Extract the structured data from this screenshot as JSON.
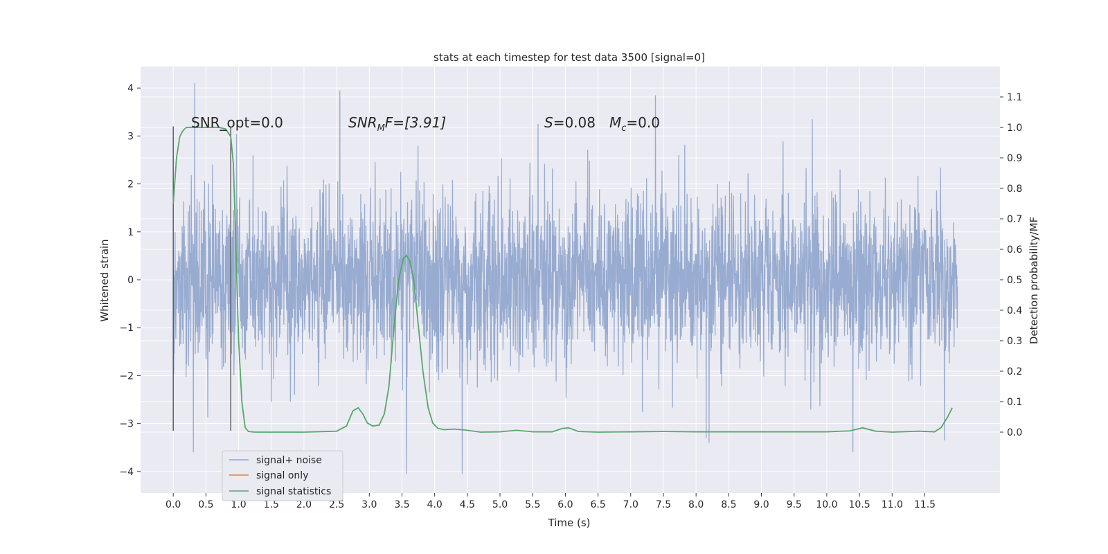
{
  "chart_data": {
    "type": "line",
    "title": "stats at each timestep for test data 3500 [signal=0]",
    "xlabel": "Time (s)",
    "ylabel": "Whitened strain",
    "ylabel_right": "Detection probability/MF",
    "xlim": [
      -0.5,
      12.65
    ],
    "ylim": [
      -4.45,
      4.45
    ],
    "ylim_right": [
      -0.2,
      1.2
    ],
    "x_ticks": [
      "0.0",
      "0.5",
      "1.0",
      "1.5",
      "2.0",
      "2.5",
      "3.0",
      "3.5",
      "4.0",
      "4.5",
      "5.0",
      "5.5",
      "6.0",
      "6.5",
      "7.0",
      "7.5",
      "8.0",
      "8.5",
      "9.0",
      "9.5",
      "10.0",
      "10.5",
      "11.0",
      "11.5"
    ],
    "y_ticks": [
      "4",
      "3",
      "2",
      "1",
      "0",
      "−1",
      "−2",
      "−3",
      "−4"
    ],
    "y_ticks_right": [
      "1.1",
      "1.0",
      "0.9",
      "0.8",
      "0.7",
      "0.6",
      "0.5",
      "0.4",
      "0.3",
      "0.2",
      "0.1",
      "0.0"
    ],
    "grid": true,
    "legend_position": "lower-left",
    "annotations": {
      "snr_opt": "SNR_opt=0.0",
      "snr_mf_main": "SNR",
      "snr_mf_sub": "M",
      "snr_mf_rest": "F=[3.91]",
      "s_var": "S",
      "s_rest": "=0.08",
      "mc_main": "M",
      "mc_sub": "c",
      "mc_rest": "=0.0"
    },
    "vertical_markers": [
      {
        "x": 0.0,
        "y": [
          -3.15,
          3.2
        ]
      },
      {
        "x": 0.88,
        "y": [
          -3.15,
          3.2
        ]
      }
    ],
    "series": [
      {
        "name": "signal+ noise",
        "color": "#8fa4cc",
        "x_range": [
          0.0,
          12.0
        ],
        "envelope_typical": [
          -2.3,
          2.3
        ],
        "peaks": [
          [
            0.33,
            4.1
          ],
          [
            2.55,
            3.95
          ],
          [
            7.38,
            3.85
          ],
          [
            9.78,
            3.35
          ],
          [
            5.58,
            3.25
          ],
          [
            3.57,
            -4.05
          ],
          [
            4.42,
            -4.05
          ],
          [
            0.31,
            -3.6
          ],
          [
            10.4,
            -3.6
          ],
          [
            8.2,
            -3.4
          ],
          [
            11.8,
            -3.35
          ]
        ]
      },
      {
        "name": "signal only",
        "color": "#dd8452",
        "x": [],
        "y": []
      },
      {
        "name": "signal statistics",
        "color": "#55a868",
        "x": [
          0.0,
          0.05,
          0.1,
          0.15,
          0.2,
          0.3,
          0.5,
          0.7,
          0.8,
          0.88,
          0.92,
          0.96,
          1.0,
          1.05,
          1.1,
          1.15,
          1.25,
          1.5,
          2.0,
          2.5,
          2.65,
          2.75,
          2.83,
          2.9,
          2.97,
          3.05,
          3.15,
          3.23,
          3.3,
          3.38,
          3.45,
          3.52,
          3.57,
          3.62,
          3.68,
          3.75,
          3.82,
          3.9,
          3.97,
          4.05,
          4.15,
          4.3,
          4.5,
          4.7,
          5.0,
          5.25,
          5.5,
          5.8,
          5.95,
          6.05,
          6.2,
          6.5,
          7.0,
          7.5,
          8.0,
          9.0,
          10.0,
          10.35,
          10.55,
          10.75,
          11.0,
          11.4,
          11.65,
          11.75,
          11.85,
          11.92
        ],
        "y": [
          0.75,
          0.9,
          0.97,
          0.99,
          1.0,
          1.0,
          1.0,
          1.0,
          0.995,
          0.97,
          0.88,
          0.6,
          0.3,
          0.1,
          0.015,
          0.002,
          0.0,
          0.0,
          0.0,
          0.003,
          0.02,
          0.07,
          0.08,
          0.06,
          0.03,
          0.02,
          0.023,
          0.06,
          0.15,
          0.35,
          0.5,
          0.57,
          0.58,
          0.56,
          0.5,
          0.35,
          0.2,
          0.08,
          0.03,
          0.012,
          0.008,
          0.01,
          0.006,
          0.0,
          0.001,
          0.006,
          0.001,
          0.001,
          0.012,
          0.014,
          0.002,
          0.0,
          0.001,
          0.002,
          0.001,
          0.001,
          0.001,
          0.004,
          0.014,
          0.003,
          0.0,
          0.003,
          0.001,
          0.015,
          0.05,
          0.08
        ]
      }
    ]
  }
}
